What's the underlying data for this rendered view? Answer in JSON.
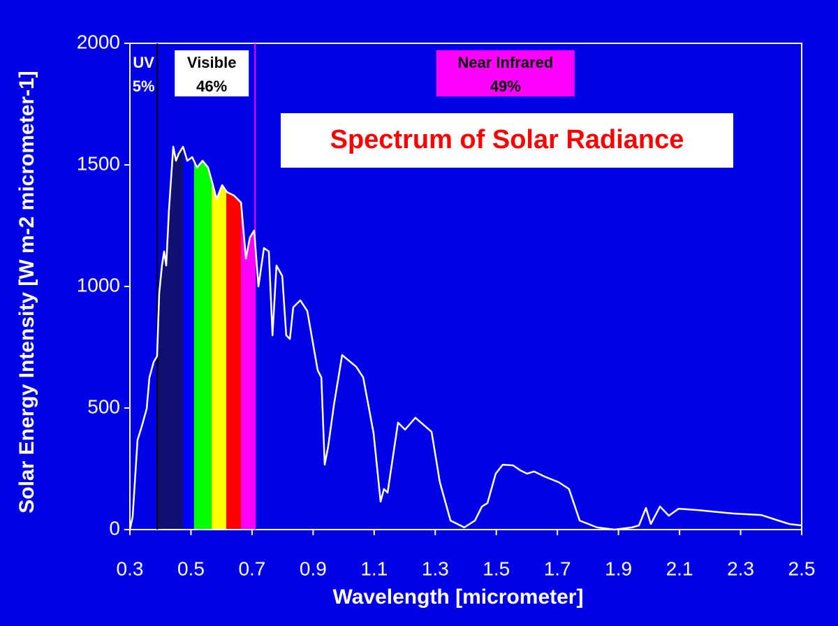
{
  "chart_data": {
    "type": "line",
    "title": "Spectrum of Solar Radiance",
    "x_label": "Wavelength [micrometer]",
    "y_label": "Solar Energy Intensity [W m-2 micrometer-1]",
    "xlim": [
      0.3,
      2.5
    ],
    "xticks": [
      0.3,
      0.5,
      0.7,
      0.9,
      1.1,
      1.3,
      1.5,
      1.7,
      1.9,
      2.1,
      2.3,
      2.5
    ],
    "ylim": [
      0,
      2000
    ],
    "yticks": [
      0,
      500,
      1000,
      1500,
      2000
    ],
    "color": "#ffffff",
    "x": [
      0.3,
      0.309,
      0.325,
      0.339,
      0.355,
      0.364,
      0.378,
      0.389,
      0.396,
      0.405,
      0.412,
      0.419,
      0.428,
      0.442,
      0.451,
      0.46,
      0.474,
      0.488,
      0.504,
      0.52,
      0.538,
      0.556,
      0.572,
      0.584,
      0.602,
      0.618,
      0.641,
      0.664,
      0.68,
      0.693,
      0.707,
      0.721,
      0.739,
      0.755,
      0.767,
      0.78,
      0.799,
      0.812,
      0.824,
      0.835,
      0.858,
      0.881,
      0.915,
      0.927,
      0.938,
      0.949,
      0.968,
      0.995,
      1.041,
      1.064,
      1.098,
      1.121,
      1.132,
      1.144,
      1.178,
      1.201,
      1.235,
      1.288,
      1.315,
      1.35,
      1.395,
      1.43,
      1.453,
      1.471,
      1.498,
      1.521,
      1.555,
      1.578,
      1.601,
      1.624,
      1.658,
      1.704,
      1.738,
      1.773,
      1.83,
      1.887,
      1.944,
      1.967,
      1.99,
      2.006,
      2.036,
      2.065,
      2.097,
      2.161,
      2.276,
      2.367,
      2.424,
      2.459,
      2.5
    ],
    "values": [
      0,
      52,
      368,
      425,
      497,
      626,
      690,
      713,
      971,
      1086,
      1144,
      1086,
      1316,
      1575,
      1517,
      1546,
      1575,
      1517,
      1532,
      1489,
      1517,
      1489,
      1417,
      1359,
      1417,
      1388,
      1374,
      1345,
      1115,
      1201,
      1230,
      1000,
      1158,
      1144,
      799,
      1086,
      1043,
      799,
      784,
      914,
      943,
      899,
      655,
      626,
      267,
      339,
      511,
      718,
      670,
      626,
      397,
      115,
      167,
      152,
      440,
      411,
      460,
      402,
      195,
      37,
      9,
      37,
      95,
      109,
      230,
      267,
      264,
      244,
      230,
      239,
      218,
      195,
      167,
      37,
      9,
      0,
      9,
      17,
      89,
      23,
      95,
      57,
      86,
      80,
      66,
      60,
      37,
      23,
      17
    ],
    "bands": [
      {
        "x": [
          0.389,
          0.474
        ],
        "color": "#101070"
      },
      {
        "x": [
          0.474,
          0.51
        ],
        "color": "#0000ff"
      },
      {
        "x": [
          0.51,
          0.568
        ],
        "color": "#00ff00"
      },
      {
        "x": [
          0.568,
          0.616
        ],
        "color": "#ffff00"
      },
      {
        "x": [
          0.616,
          0.664
        ],
        "color": "#ff0000"
      },
      {
        "x": [
          0.664,
          0.709
        ],
        "color": "#ff00ff"
      }
    ],
    "markers": [
      {
        "x": 0.39,
        "color": "#000000"
      },
      {
        "x": 0.71,
        "color": "#ff00ff"
      }
    ],
    "annotations": [
      {
        "text": [
          "UV",
          "5%"
        ],
        "x": 0.345,
        "box": null
      },
      {
        "text": [
          "Visible",
          "46%"
        ],
        "x": 0.568,
        "box": "#ffffff"
      },
      {
        "text": [
          "Near Infrared",
          "49%"
        ],
        "x": 1.53,
        "box": "#ff00ff"
      }
    ]
  }
}
